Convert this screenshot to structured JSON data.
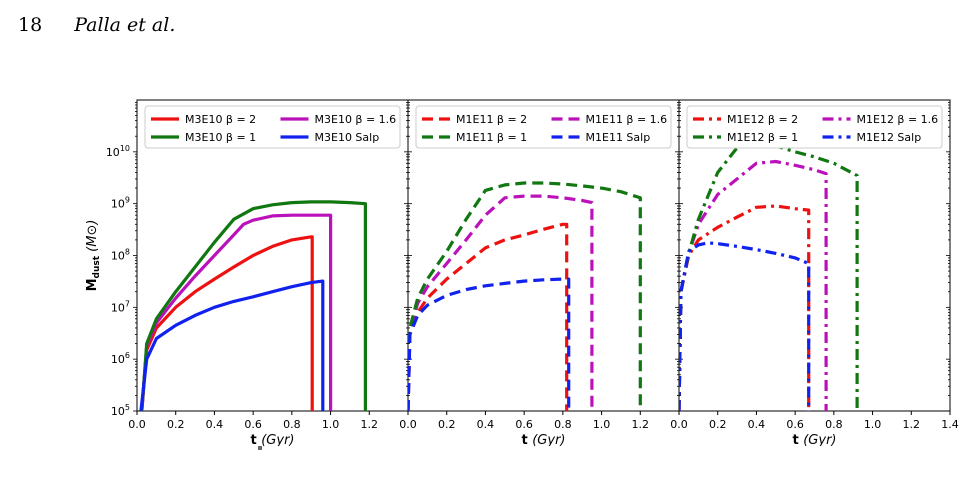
{
  "page_header": {
    "page_number": "18",
    "authors": "Palla et al."
  },
  "chart_data": [
    {
      "type": "line",
      "panel": "M3E10",
      "line_style": "solid",
      "xlabel": "t (Gyr)",
      "ylabel": "M_dust (M⊙)",
      "xlim": [
        0.0,
        1.4
      ],
      "ylim": [
        100000,
        100000000000
      ],
      "y_scale": "log",
      "x_ticks": [
        "0.0",
        "0.2",
        "0.4",
        "0.6",
        "0.8",
        "1.0",
        "1.2"
      ],
      "y_ticks": [
        "10^5",
        "10^6",
        "10^7",
        "10^8",
        "10^9",
        "10^10"
      ],
      "legend_position": "top",
      "series": [
        {
          "name": "M3E10 β = 2",
          "color": "#ee1111",
          "x": [
            0.025,
            0.05,
            0.1,
            0.2,
            0.3,
            0.4,
            0.5,
            0.6,
            0.7,
            0.8,
            0.9,
            0.905,
            0.905
          ],
          "y": [
            100000,
            1500000,
            4000000,
            10000000,
            20000000,
            35000000,
            60000000,
            100000000,
            150000000,
            200000000,
            230000000,
            230000000,
            100000
          ]
        },
        {
          "name": "M3E10 β = 1.6",
          "color": "#bb11bb",
          "x": [
            0.025,
            0.05,
            0.1,
            0.2,
            0.3,
            0.4,
            0.5,
            0.55,
            0.6,
            0.7,
            0.8,
            0.9,
            1.0,
            1.0
          ],
          "y": [
            100000,
            1800000,
            5000000,
            15000000,
            40000000,
            100000000,
            250000000,
            400000000,
            480000000,
            580000000,
            600000000,
            600000000,
            600000000,
            100000
          ]
        },
        {
          "name": "M3E10 β = 1",
          "color": "#117711",
          "x": [
            0.025,
            0.05,
            0.1,
            0.2,
            0.3,
            0.4,
            0.5,
            0.6,
            0.7,
            0.8,
            0.9,
            1.0,
            1.1,
            1.18,
            1.18
          ],
          "y": [
            100000,
            2000000,
            6000000,
            20000000,
            60000000,
            180000000,
            500000000,
            800000000,
            950000000,
            1050000000,
            1080000000,
            1080000000,
            1050000000,
            1000000000,
            100000
          ]
        },
        {
          "name": "M3E10 Salp",
          "color": "#1122ee",
          "x": [
            0.02,
            0.05,
            0.1,
            0.2,
            0.3,
            0.4,
            0.5,
            0.6,
            0.7,
            0.8,
            0.9,
            0.96,
            0.96
          ],
          "y": [
            100000,
            1000000,
            2500000,
            4500000,
            7000000,
            10000000,
            13000000,
            16000000,
            20000000,
            25000000,
            30000000,
            32000000,
            100000
          ]
        }
      ]
    },
    {
      "type": "line",
      "panel": "M1E11",
      "line_style": "dashed",
      "xlabel": "t (Gyr)",
      "xlim": [
        0.0,
        1.4
      ],
      "ylim": [
        100000,
        100000000000
      ],
      "y_scale": "log",
      "x_ticks": [
        "0.0",
        "0.2",
        "0.4",
        "0.6",
        "0.8",
        "1.0",
        "1.2"
      ],
      "legend_position": "top",
      "series": [
        {
          "name": "M1E11 β = 2",
          "color": "#ee1111",
          "x": [
            0.0,
            0.01,
            0.05,
            0.1,
            0.2,
            0.3,
            0.4,
            0.5,
            0.6,
            0.7,
            0.8,
            0.82,
            0.82
          ],
          "y": [
            100000,
            3000000,
            8000000,
            15000000,
            35000000,
            70000000,
            140000000,
            200000000,
            250000000,
            320000000,
            400000000,
            400000000,
            100000
          ]
        },
        {
          "name": "M1E11 β = 1.6",
          "color": "#bb11bb",
          "x": [
            0.0,
            0.01,
            0.05,
            0.1,
            0.2,
            0.3,
            0.4,
            0.5,
            0.6,
            0.7,
            0.8,
            0.9,
            0.95,
            0.95
          ],
          "y": [
            100000,
            3500000,
            12000000,
            25000000,
            70000000,
            200000000,
            600000000,
            1300000000,
            1400000000,
            1400000000,
            1300000000,
            1150000000,
            1050000000,
            100000
          ]
        },
        {
          "name": "M1E11 β = 1",
          "color": "#117711",
          "x": [
            0.0,
            0.01,
            0.05,
            0.1,
            0.2,
            0.3,
            0.4,
            0.5,
            0.6,
            0.7,
            0.8,
            0.9,
            1.0,
            1.1,
            1.2,
            1.2
          ],
          "y": [
            100000,
            4000000,
            15000000,
            35000000,
            120000000,
            500000000,
            1800000000,
            2300000000,
            2500000000,
            2500000000,
            2400000000,
            2200000000,
            2000000000,
            1700000000,
            1300000000,
            100000
          ]
        },
        {
          "name": "M1E11 Salp",
          "color": "#1122ee",
          "x": [
            0.0,
            0.01,
            0.05,
            0.1,
            0.2,
            0.3,
            0.4,
            0.5,
            0.6,
            0.7,
            0.8,
            0.83,
            0.83
          ],
          "y": [
            100000,
            3000000,
            7000000,
            11000000,
            17000000,
            22000000,
            26000000,
            29000000,
            32000000,
            34000000,
            35000000,
            35000000,
            100000
          ]
        }
      ]
    },
    {
      "type": "line",
      "panel": "M1E12",
      "line_style": "dashdot",
      "xlabel": "t (Gyr)",
      "xlim": [
        0.0,
        1.4
      ],
      "ylim": [
        100000,
        100000000000
      ],
      "y_scale": "log",
      "x_ticks": [
        "0.0",
        "0.2",
        "0.4",
        "0.6",
        "0.8",
        "1.0",
        "1.2",
        "1.4"
      ],
      "legend_position": "top",
      "series": [
        {
          "name": "M1E12 β = 2",
          "color": "#ee1111",
          "x": [
            0.0,
            0.01,
            0.05,
            0.1,
            0.2,
            0.3,
            0.4,
            0.5,
            0.6,
            0.67,
            0.67
          ],
          "y": [
            100000,
            20000000,
            100000000,
            200000000,
            350000000,
            550000000,
            850000000,
            900000000,
            800000000,
            750000000,
            100000
          ]
        },
        {
          "name": "M1E12 β = 1.6",
          "color": "#bb11bb",
          "x": [
            0.0,
            0.01,
            0.05,
            0.1,
            0.2,
            0.3,
            0.4,
            0.5,
            0.6,
            0.7,
            0.76,
            0.76
          ],
          "y": [
            100000,
            20000000,
            110000000,
            400000000,
            1500000000,
            3000000000,
            6000000000,
            6500000000,
            5500000000,
            4500000000,
            3800000000,
            100000
          ]
        },
        {
          "name": "M1E12 β = 1",
          "color": "#117711",
          "x": [
            0.0,
            0.01,
            0.05,
            0.1,
            0.2,
            0.3,
            0.4,
            0.5,
            0.6,
            0.7,
            0.8,
            0.92,
            0.92
          ],
          "y": [
            100000,
            20000000,
            110000000,
            500000000,
            4000000000,
            12000000000,
            15000000000,
            13000000000,
            10000000000,
            8000000000,
            6000000000,
            3500000000,
            100000
          ]
        },
        {
          "name": "M1E12 Salp",
          "color": "#1122ee",
          "x": [
            0.0,
            0.01,
            0.05,
            0.1,
            0.15,
            0.2,
            0.3,
            0.4,
            0.5,
            0.6,
            0.67,
            0.67
          ],
          "y": [
            100000,
            20000000,
            120000000,
            160000000,
            175000000,
            170000000,
            150000000,
            130000000,
            110000000,
            90000000,
            70000000,
            100000
          ]
        }
      ]
    }
  ]
}
